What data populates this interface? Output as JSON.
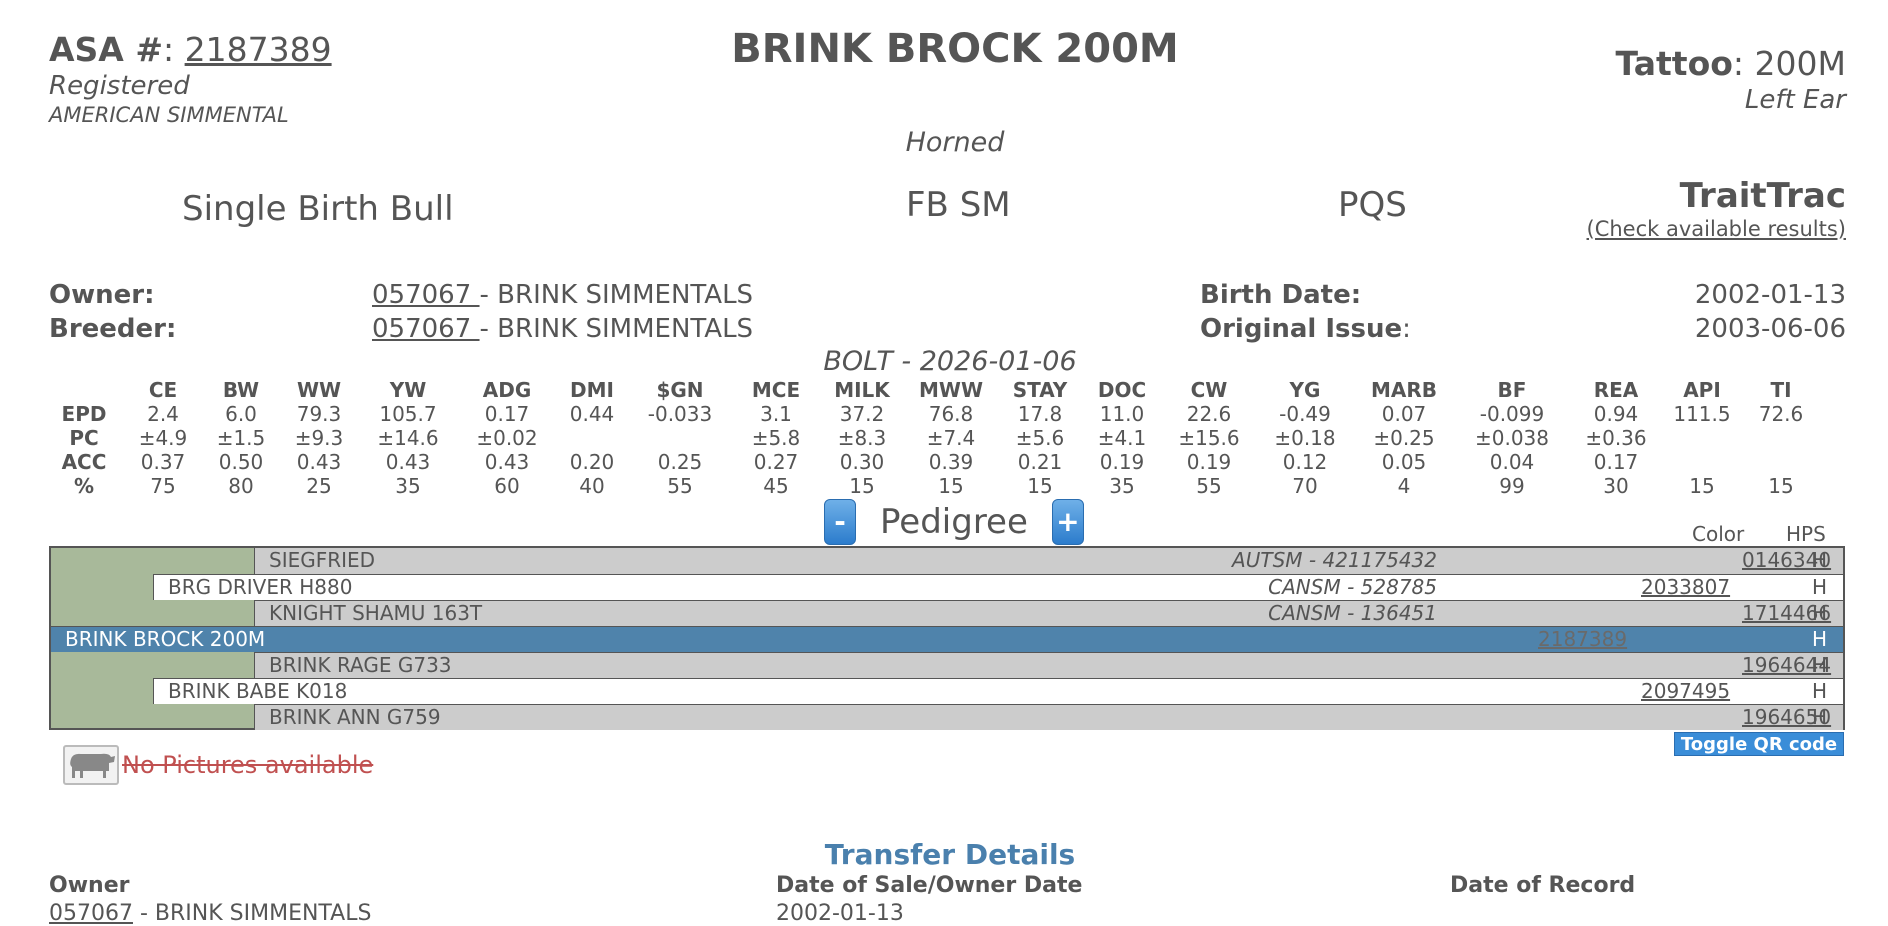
{
  "header": {
    "asa_label": "ASA #",
    "asa_number": "2187389",
    "registered": "Registered",
    "breed": "AMERICAN SIMMENTAL",
    "animal_name": "BRINK BROCK 200M",
    "horned": "Horned",
    "tattoo_label": "Tattoo",
    "tattoo_value": "200M",
    "tattoo_location": "Left Ear"
  },
  "status": {
    "birth": "Single Birth Bull",
    "breed_code": "FB SM",
    "pqs": "PQS",
    "traittrac_title": "TraitTrac",
    "traittrac_link": "(Check available results)"
  },
  "ownership": {
    "owner_label": "Owner:",
    "owner_id": "057067 ",
    "owner_name": " - BRINK SIMMENTALS",
    "breeder_label": "Breeder:",
    "breeder_id": "057067 ",
    "breeder_name": " - BRINK SIMMENTALS",
    "birth_date_label": "Birth Date:",
    "birth_date": "2002-01-13",
    "original_issue_label": "Original Issue",
    "original_issue": "2003-06-06"
  },
  "epd": {
    "bolt": "BOLT - 2026-01-06",
    "columns": [
      "CE",
      "BW",
      "WW",
      "YW",
      "ADG",
      "DMI",
      "$GN",
      "MCE",
      "MILK",
      "MWW",
      "STAY",
      "DOC",
      "CW",
      "YG",
      "MARB",
      "BF",
      "REA",
      "API",
      "TI"
    ],
    "rows": [
      {
        "label": "EPD",
        "values": [
          "2.4",
          "6.0",
          "79.3",
          "105.7",
          "0.17",
          "0.44",
          "-0.033",
          "3.1",
          "37.2",
          "76.8",
          "17.8",
          "11.0",
          "22.6",
          "-0.49",
          "0.07",
          "-0.099",
          "0.94",
          "111.5",
          "72.6"
        ]
      },
      {
        "label": "PC",
        "values": [
          "±4.9",
          "±1.5",
          "±9.3",
          "±14.6",
          "±0.02",
          "",
          "",
          "±5.8",
          "±8.3",
          "±7.4",
          "±5.6",
          "±4.1",
          "±15.6",
          "±0.18",
          "±0.25",
          "±0.038",
          "±0.36",
          "",
          ""
        ]
      },
      {
        "label": "ACC",
        "values": [
          "0.37",
          "0.50",
          "0.43",
          "0.43",
          "0.43",
          "0.20",
          "0.25",
          "0.27",
          "0.30",
          "0.39",
          "0.21",
          "0.19",
          "0.19",
          "0.12",
          "0.05",
          "0.04",
          "0.17",
          "",
          ""
        ]
      },
      {
        "label": "%",
        "values": [
          "75",
          "80",
          "25",
          "35",
          "60",
          "40",
          "55",
          "45",
          "15",
          "15",
          "15",
          "35",
          "55",
          "70",
          "4",
          "99",
          "30",
          "15",
          "15"
        ]
      }
    ]
  },
  "pedigree": {
    "minus": "-",
    "plus": "+",
    "title": "Pedigree",
    "color_header": "Color",
    "hps_header": "HPS",
    "rows": [
      {
        "name": "SIEGFRIED",
        "reg": "AUTSM - 421175432",
        "num": "0146340",
        "hps": "H"
      },
      {
        "name": "BRG DRIVER H880",
        "reg": "CANSM - 528785",
        "num": "2033807",
        "hps": "H"
      },
      {
        "name": "KNIGHT SHAMU 163T",
        "reg": "CANSM - 136451",
        "num": "1714466",
        "hps": "H"
      },
      {
        "name": "BRINK BROCK 200M",
        "reg": "",
        "num": "2187389",
        "hps": "H"
      },
      {
        "name": "BRINK RAGE G733",
        "reg": "",
        "num": "1964644",
        "hps": "H"
      },
      {
        "name": "BRINK BABE K018",
        "reg": "",
        "num": "2097495",
        "hps": "H"
      },
      {
        "name": "BRINK ANN G759",
        "reg": "",
        "num": "1964650",
        "hps": "H"
      }
    ]
  },
  "qr_button": "Toggle QR code",
  "no_pictures": "No Pictures available",
  "transfer": {
    "title": "Transfer Details",
    "owner_header": "Owner",
    "owner_id": "057067",
    "owner_name": " - BRINK SIMMENTALS",
    "sale_header": "Date of Sale/Owner Date",
    "sale_date": "2002-01-13",
    "record_header": "Date of Record"
  }
}
